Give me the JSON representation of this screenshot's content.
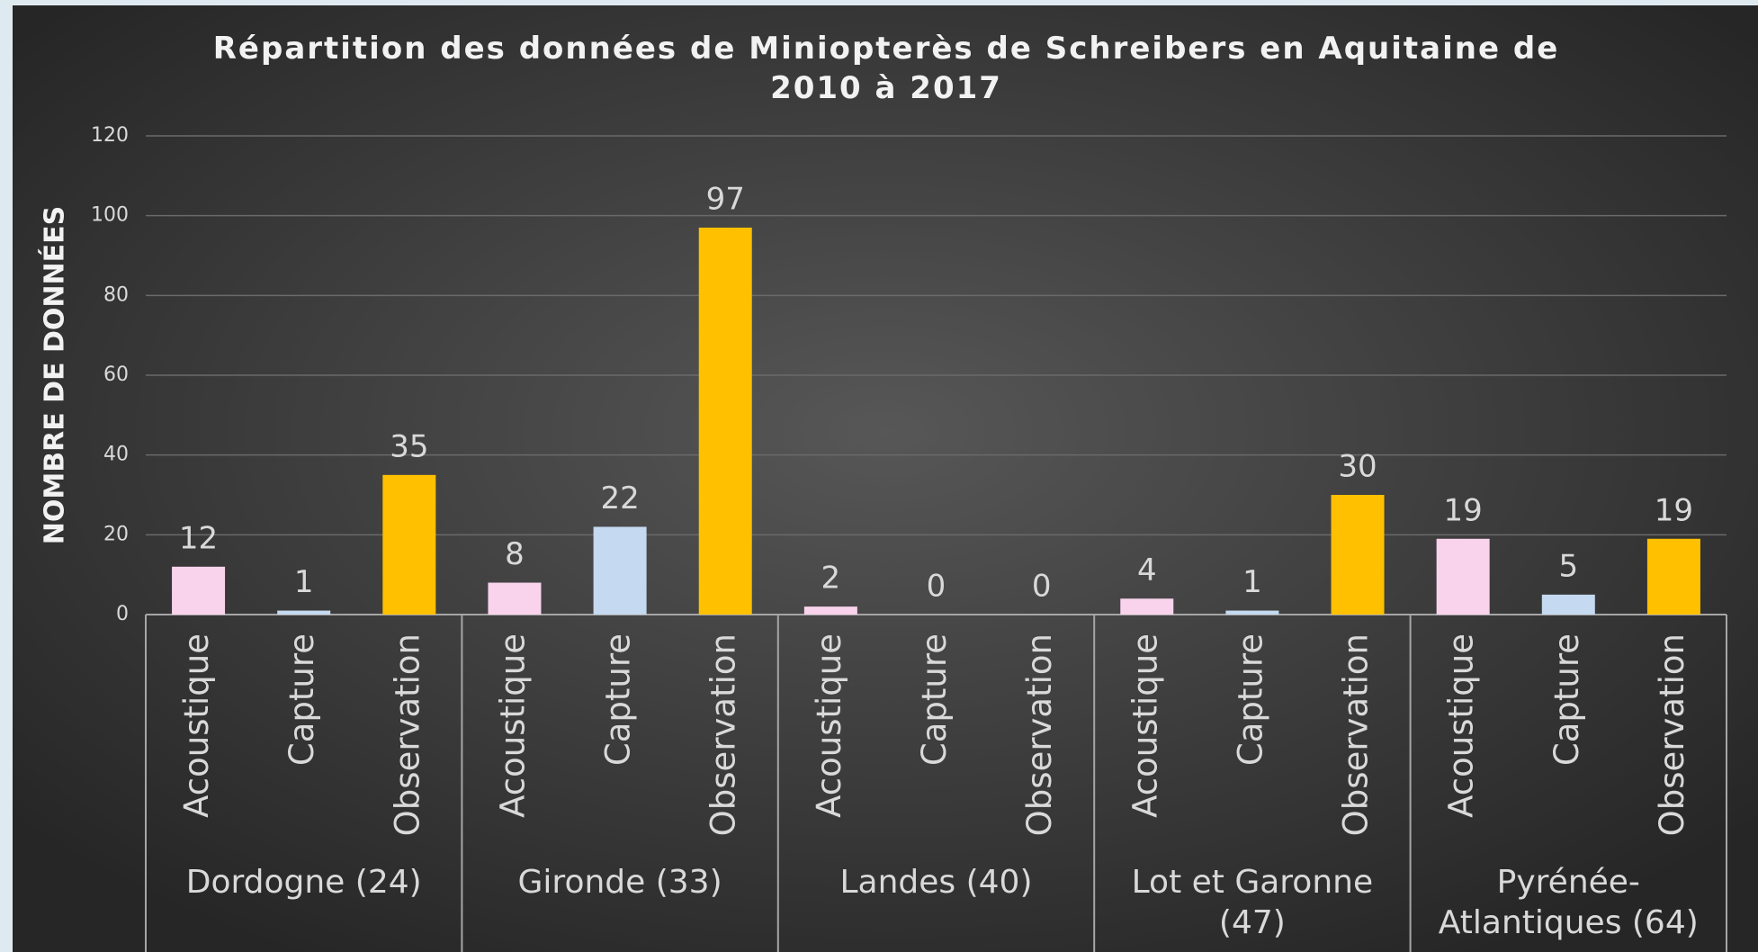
{
  "chart_data": {
    "type": "bar",
    "title": "Répartition des données de Miniopterès de Schreibers en Aquitaine de 2010 à 2017",
    "y_label": "NOMBRE DE DONNÉES",
    "categories": [
      "Dordogne (24)",
      "Gironde (33)",
      "Landes (40)",
      "Lot et Garonne (47)",
      "Pyrénée-Atlantiques (64)"
    ],
    "series": [
      {
        "name": "Acoustique",
        "color": "#f9d3ec",
        "values": [
          12,
          8,
          2,
          4,
          19
        ]
      },
      {
        "name": "Capture",
        "color": "#c5d9f0",
        "values": [
          1,
          22,
          0,
          1,
          5
        ]
      },
      {
        "name": "Observation",
        "color": "#ffc000",
        "values": [
          35,
          97,
          0,
          30,
          19
        ]
      }
    ],
    "ylim": [
      0,
      120
    ],
    "yticks": [
      0,
      20,
      40,
      60,
      80,
      100,
      120
    ],
    "grid": true
  }
}
